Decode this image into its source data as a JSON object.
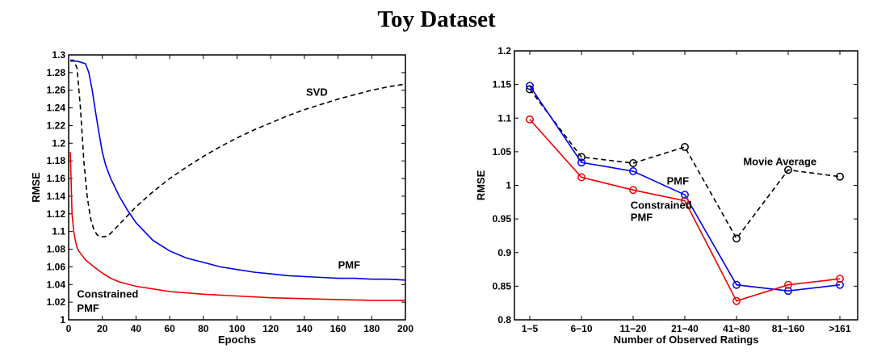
{
  "figure_title": "Toy Dataset",
  "chart_data": [
    {
      "type": "line",
      "title": "",
      "xlabel": "Epochs",
      "ylabel": "RMSE",
      "xlim": [
        0,
        200
      ],
      "ylim": [
        1.0,
        1.3
      ],
      "xticks": [
        0,
        20,
        40,
        60,
        80,
        100,
        120,
        140,
        160,
        180,
        200
      ],
      "yticks": [
        1,
        1.02,
        1.04,
        1.06,
        1.08,
        1.1,
        1.12,
        1.14,
        1.16,
        1.18,
        1.2,
        1.22,
        1.24,
        1.26,
        1.28,
        1.3
      ],
      "ytick_labels": [
        "1",
        "1.02",
        "1.04",
        "1.06",
        "1.08",
        "1.1",
        "1.12",
        "1.14",
        "1.16",
        "1.18",
        "1.2",
        "1.22",
        "1.24",
        "1.26",
        "1.28",
        "1.3"
      ],
      "grid": false,
      "series": [
        {
          "name": "SVD",
          "color": "#000000",
          "style": "dashed",
          "x": [
            1,
            3,
            5,
            7,
            9,
            11,
            13,
            15,
            17,
            19,
            21,
            23,
            25,
            27,
            30,
            35,
            40,
            50,
            60,
            70,
            80,
            90,
            100,
            110,
            120,
            130,
            140,
            150,
            160,
            170,
            180,
            190,
            200
          ],
          "y": [
            1.294,
            1.294,
            1.285,
            1.24,
            1.18,
            1.14,
            1.115,
            1.102,
            1.096,
            1.094,
            1.094,
            1.095,
            1.098,
            1.102,
            1.108,
            1.118,
            1.128,
            1.145,
            1.16,
            1.173,
            1.185,
            1.196,
            1.206,
            1.215,
            1.223,
            1.231,
            1.238,
            1.244,
            1.25,
            1.255,
            1.26,
            1.264,
            1.267
          ]
        },
        {
          "name": "PMF",
          "color": "#0000ee",
          "style": "solid",
          "x": [
            1,
            5,
            10,
            12,
            14,
            16,
            18,
            20,
            22,
            25,
            30,
            35,
            40,
            50,
            60,
            70,
            80,
            90,
            100,
            110,
            120,
            130,
            140,
            150,
            160,
            170,
            180,
            190,
            200
          ],
          "y": [
            1.293,
            1.293,
            1.29,
            1.28,
            1.26,
            1.235,
            1.212,
            1.19,
            1.175,
            1.16,
            1.14,
            1.124,
            1.11,
            1.09,
            1.078,
            1.07,
            1.065,
            1.06,
            1.057,
            1.054,
            1.052,
            1.05,
            1.049,
            1.048,
            1.047,
            1.047,
            1.046,
            1.046,
            1.045
          ]
        },
        {
          "name": "Constrained PMF",
          "color": "#ee0000",
          "style": "solid",
          "x": [
            1,
            2,
            3,
            4,
            5,
            6,
            8,
            10,
            15,
            20,
            25,
            30,
            40,
            50,
            60,
            80,
            100,
            120,
            140,
            160,
            180,
            200
          ],
          "y": [
            1.19,
            1.12,
            1.1,
            1.09,
            1.082,
            1.078,
            1.073,
            1.068,
            1.06,
            1.053,
            1.047,
            1.043,
            1.038,
            1.035,
            1.032,
            1.029,
            1.027,
            1.025,
            1.024,
            1.023,
            1.022,
            1.022
          ]
        }
      ],
      "annotations": [
        {
          "text": "SVD",
          "x": 141,
          "y": 1.254
        },
        {
          "text": "PMF",
          "x": 160,
          "y": 1.058
        },
        {
          "text": "Constrained",
          "x": 5,
          "y": 1.025
        },
        {
          "text": "PMF",
          "x": 5,
          "y": 1.009
        }
      ]
    },
    {
      "type": "line",
      "title": "",
      "xlabel": "Number of Observed Ratings",
      "ylabel": "RMSE",
      "categories": [
        "1−5",
        "6−10",
        "11−20",
        "21−40",
        "41−80",
        "81−160",
        ">161"
      ],
      "ylim": [
        0.8,
        1.2
      ],
      "yticks": [
        0.8,
        0.85,
        0.9,
        0.95,
        1,
        1.05,
        1.1,
        1.15,
        1.2
      ],
      "ytick_labels": [
        "0.8",
        "0.85",
        "0.9",
        "0.95",
        "1",
        "1.05",
        "1.1",
        "1.15",
        "1.2"
      ],
      "grid": false,
      "markers": "circle",
      "series": [
        {
          "name": "Movie Average",
          "color": "#000000",
          "style": "dashed",
          "values": [
            1.143,
            1.042,
            1.033,
            1.057,
            0.921,
            1.023,
            1.013
          ]
        },
        {
          "name": "PMF",
          "color": "#0000ee",
          "style": "solid",
          "values": [
            1.148,
            1.034,
            1.021,
            0.986,
            0.852,
            0.843,
            0.852
          ]
        },
        {
          "name": "Constrained PMF",
          "color": "#ee0000",
          "style": "solid",
          "values": [
            1.098,
            1.012,
            0.993,
            0.977,
            0.828,
            0.852,
            0.861
          ]
        }
      ],
      "annotations": [
        {
          "text": "Movie Average",
          "cat": 4.13,
          "y": 1.03
        },
        {
          "text": "PMF",
          "cat": 2.65,
          "y": 1.001
        },
        {
          "text": "Constrained",
          "cat": 1.95,
          "y": 0.965
        },
        {
          "text": "PMF",
          "cat": 1.95,
          "y": 0.947
        }
      ]
    }
  ]
}
